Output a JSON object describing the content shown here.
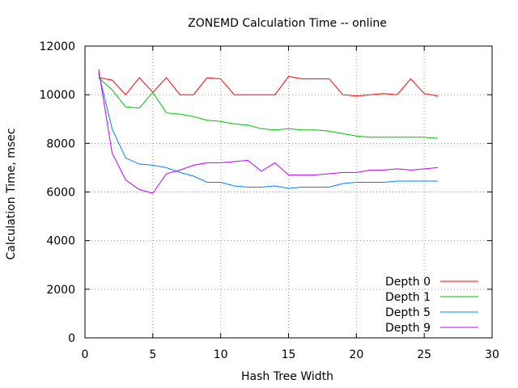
{
  "chart_data": {
    "type": "line",
    "title": "ZONEMD Calculation Time -- online",
    "xlabel": "Hash Tree Width",
    "ylabel": "Calculation Time, msec",
    "xlim": [
      0,
      30
    ],
    "ylim": [
      0,
      12000
    ],
    "xticks": [
      0,
      5,
      10,
      15,
      20,
      25,
      30
    ],
    "yticks": [
      0,
      2000,
      4000,
      6000,
      8000,
      10000,
      12000
    ],
    "grid": true,
    "legend_position": "bottom-right",
    "x": [
      1,
      2,
      3,
      4,
      5,
      6,
      7,
      8,
      9,
      10,
      11,
      12,
      13,
      14,
      15,
      16,
      17,
      18,
      19,
      20,
      21,
      22,
      23,
      24,
      25,
      26
    ],
    "series": [
      {
        "name": "Depth 0",
        "color": "#ff0000",
        "values": [
          10700,
          10600,
          10000,
          10700,
          10100,
          10700,
          10000,
          10000,
          10700,
          10650,
          10000,
          10000,
          10000,
          10000,
          10750,
          10650,
          10650,
          10650,
          10000,
          9950,
          10000,
          10050,
          10000,
          10650,
          10050,
          9950
        ]
      },
      {
        "name": "Depth 1",
        "color": "#00c000",
        "values": [
          10700,
          10200,
          9500,
          9450,
          10100,
          9250,
          9200,
          9100,
          8950,
          8900,
          8800,
          8750,
          8600,
          8550,
          8600,
          8550,
          8550,
          8500,
          8400,
          8300,
          8250,
          8250,
          8250,
          8250,
          8250,
          8200
        ]
      },
      {
        "name": "Depth 5",
        "color": "#0080ff",
        "values": [
          10900,
          8600,
          7400,
          7150,
          7100,
          7000,
          6800,
          6650,
          6400,
          6400,
          6250,
          6200,
          6200,
          6250,
          6150,
          6200,
          6200,
          6200,
          6350,
          6400,
          6400,
          6400,
          6450,
          6450,
          6450,
          6450
        ]
      },
      {
        "name": "Depth 9",
        "color": "#c000ff",
        "values": [
          11050,
          7600,
          6500,
          6100,
          5950,
          6750,
          6900,
          7100,
          7200,
          7200,
          7250,
          7300,
          6850,
          7200,
          6700,
          6700,
          6700,
          6750,
          6800,
          6800,
          6900,
          6900,
          6950,
          6900,
          6950,
          7000
        ]
      }
    ]
  }
}
